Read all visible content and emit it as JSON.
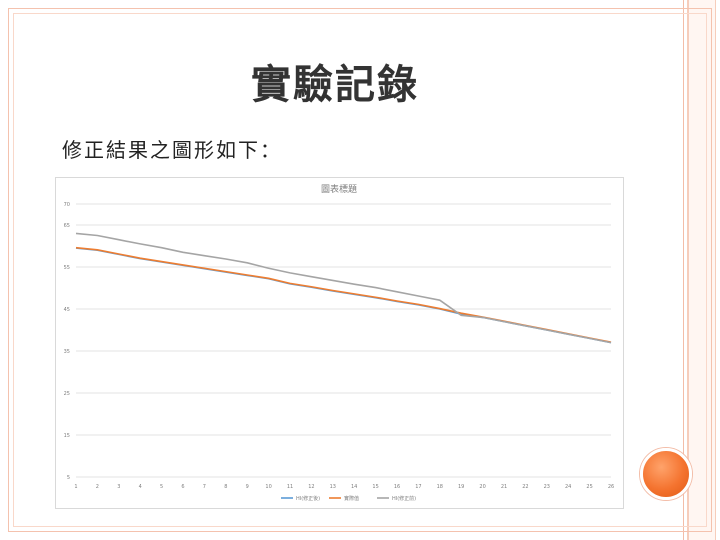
{
  "slide": {
    "title": "實驗記錄",
    "subtitle": "修正結果之圖形如下："
  },
  "colors": {
    "accent_orange": "#f4732f",
    "frame": "#f4c2ae"
  },
  "chart_data": {
    "type": "line",
    "title": "圖表標題",
    "xlabel": "",
    "ylabel": "",
    "x": [
      1,
      2,
      3,
      4,
      5,
      6,
      7,
      8,
      9,
      10,
      11,
      12,
      13,
      14,
      15,
      16,
      17,
      18,
      19,
      20,
      21,
      22,
      23,
      24,
      25,
      26
    ],
    "ylim": [
      5,
      70
    ],
    "yticks": [
      5,
      15,
      25,
      35,
      45,
      55,
      65,
      70
    ],
    "grid": true,
    "legend_position": "bottom",
    "series": [
      {
        "name": "HI(修正後)",
        "color": "#5b9bd5",
        "values": [
          59.5,
          59.0,
          58.0,
          57.0,
          56.2,
          55.4,
          54.6,
          53.8,
          53.0,
          52.2,
          51.0,
          50.2,
          49.3,
          48.5,
          47.7,
          46.8,
          46.0,
          45.0,
          43.8,
          43.0,
          42.0,
          41.0,
          40.0,
          39.0,
          38.0,
          37.0
        ]
      },
      {
        "name": "實際值",
        "color": "#ed7d31",
        "values": [
          59.6,
          59.1,
          58.1,
          57.1,
          56.3,
          55.5,
          54.7,
          53.9,
          53.1,
          52.3,
          51.1,
          50.3,
          49.4,
          48.6,
          47.8,
          46.9,
          46.1,
          45.1,
          44.0,
          43.1,
          42.1,
          41.1,
          40.1,
          39.1,
          38.1,
          37.1
        ]
      },
      {
        "name": "HI(修正前)",
        "color": "#a5a5a5",
        "values": [
          63.0,
          62.5,
          61.5,
          60.5,
          59.6,
          58.5,
          57.7,
          56.9,
          56.0,
          54.7,
          53.6,
          52.7,
          51.8,
          50.9,
          50.1,
          49.1,
          48.1,
          47.1,
          43.5,
          43.0,
          42.0,
          41.0,
          40.0,
          39.0,
          38.0,
          37.0
        ]
      }
    ]
  }
}
